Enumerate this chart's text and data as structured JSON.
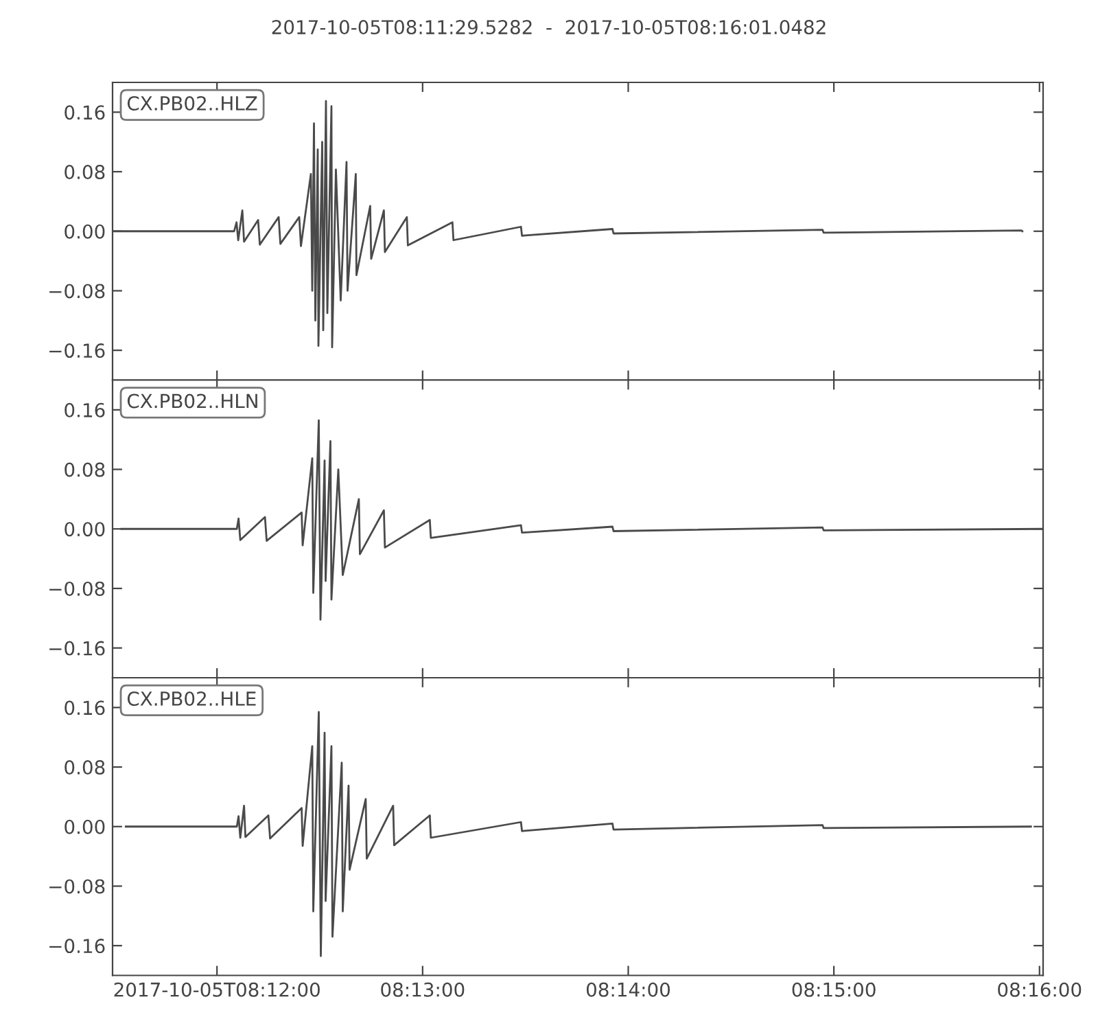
{
  "chart_data": [
    {
      "type": "line",
      "title": "2017-10-05T08:11:29.5282  -  2017-10-05T08:16:01.0482",
      "annotations": [
        "CX.PB02..HLZ"
      ],
      "xlim": [
        "2017-10-05T08:11:29.528",
        "2017-10-05T08:16:01.048"
      ],
      "xticks": [
        {
          "value": "2017-10-05T08:12:00",
          "label": null
        },
        {
          "value": "2017-10-05T08:13:00",
          "label": null
        },
        {
          "value": "2017-10-05T08:14:00",
          "label": null
        },
        {
          "value": "2017-10-05T08:15:00",
          "label": null
        },
        {
          "value": "2017-10-05T08:16:00",
          "label": null
        }
      ],
      "ylim": [
        -0.2,
        0.2
      ],
      "yticks": [
        {
          "value": -0.16,
          "label": "−0.16"
        },
        {
          "value": -0.08,
          "label": "−0.08"
        },
        {
          "value": 0,
          "label": "0.00"
        },
        {
          "value": 0.08,
          "label": "0.08"
        },
        {
          "value": 0.16,
          "label": "0.16"
        }
      ],
      "tick_labels": "y",
      "grid": false,
      "x": [
        "2017-10-05T08:11:29.6",
        "2017-10-05T08:12:05.0",
        "2017-10-05T08:12:05.7",
        "2017-10-05T08:12:06.2",
        "2017-10-05T08:12:07.4",
        "2017-10-05T08:12:07.9",
        "2017-10-05T08:12:12.0",
        "2017-10-05T08:12:12.5",
        "2017-10-05T08:12:18.0",
        "2017-10-05T08:12:18.5",
        "2017-10-05T08:12:24.0",
        "2017-10-05T08:12:24.5",
        "2017-10-05T08:12:27.4",
        "2017-10-05T08:12:27.8",
        "2017-10-05T08:12:28.3",
        "2017-10-05T08:12:28.7",
        "2017-10-05T08:12:29.4",
        "2017-10-05T08:12:29.6",
        "2017-10-05T08:12:30.7",
        "2017-10-05T08:12:31.0",
        "2017-10-05T08:12:31.8",
        "2017-10-05T08:12:32.2",
        "2017-10-05T08:12:33.4",
        "2017-10-05T08:12:33.6",
        "2017-10-05T08:12:34.7",
        "2017-10-05T08:12:36.1",
        "2017-10-05T08:12:37.8",
        "2017-10-05T08:12:38.1",
        "2017-10-05T08:12:40.5",
        "2017-10-05T08:12:40.7",
        "2017-10-05T08:12:44.7",
        "2017-10-05T08:12:45.0",
        "2017-10-05T08:12:48.7",
        "2017-10-05T08:12:49.0",
        "2017-10-05T08:12:55.4",
        "2017-10-05T08:12:55.7",
        "2017-10-05T08:13:08.7",
        "2017-10-05T08:13:09.0",
        "2017-10-05T08:13:28.7",
        "2017-10-05T08:13:29.0",
        "2017-10-05T08:13:55.4",
        "2017-10-05T08:13:55.7",
        "2017-10-05T08:14:56.7",
        "2017-10-05T08:14:57.0",
        "2017-10-05T08:15:54.7",
        "2017-10-05T08:15:55.0"
      ],
      "series": [
        {
          "color": "#4a4a4a",
          "line_style": "solid",
          "marker": "none",
          "values": [
            0,
            0,
            0.012,
            -0.012,
            0.028,
            -0.014,
            0.015,
            -0.018,
            0.019,
            -0.017,
            0.019,
            -0.02,
            0.077,
            -0.08,
            0.145,
            -0.12,
            0.11,
            -0.154,
            0.12,
            -0.133,
            0.175,
            -0.11,
            0.168,
            -0.156,
            0.083,
            -0.093,
            0.093,
            -0.08,
            0.077,
            -0.059,
            0.034,
            -0.037,
            0.028,
            -0.028,
            0.019,
            -0.019,
            0.012,
            -0.012,
            0.006,
            -0.006,
            0.003,
            -0.003,
            0.002,
            -0.002,
            0.001,
            0
          ]
        }
      ]
    },
    {
      "type": "line",
      "annotations": [
        "CX.PB02..HLN"
      ],
      "xlim": [
        "2017-10-05T08:11:29.528",
        "2017-10-05T08:16:01.048"
      ],
      "xticks": [
        {
          "value": "2017-10-05T08:12:00",
          "label": null
        },
        {
          "value": "2017-10-05T08:13:00",
          "label": null
        },
        {
          "value": "2017-10-05T08:14:00",
          "label": null
        },
        {
          "value": "2017-10-05T08:15:00",
          "label": null
        },
        {
          "value": "2017-10-05T08:16:00",
          "label": null
        }
      ],
      "ylim": [
        -0.2,
        0.2
      ],
      "yticks": [
        {
          "value": -0.16,
          "label": "−0.16"
        },
        {
          "value": -0.08,
          "label": "−0.08"
        },
        {
          "value": 0,
          "label": "0.00"
        },
        {
          "value": 0.08,
          "label": "0.08"
        },
        {
          "value": 0.16,
          "label": "0.16"
        }
      ],
      "tick_labels": "y",
      "grid": false,
      "x": [
        "2017-10-05T08:11:32.1",
        "2017-10-05T08:12:05.8",
        "2017-10-05T08:12:06.3",
        "2017-10-05T08:12:06.8",
        "2017-10-05T08:12:14.0",
        "2017-10-05T08:12:14.5",
        "2017-10-05T08:12:24.7",
        "2017-10-05T08:12:25.0",
        "2017-10-05T08:12:27.8",
        "2017-10-05T08:12:28.1",
        "2017-10-05T08:12:29.7",
        "2017-10-05T08:12:30.2",
        "2017-10-05T08:12:31.4",
        "2017-10-05T08:12:31.7",
        "2017-10-05T08:12:33.1",
        "2017-10-05T08:12:33.4",
        "2017-10-05T08:12:35.4",
        "2017-10-05T08:12:36.7",
        "2017-10-05T08:12:41.4",
        "2017-10-05T08:12:41.7",
        "2017-10-05T08:12:48.7",
        "2017-10-05T08:12:49.0",
        "2017-10-05T08:13:02.1",
        "2017-10-05T08:13:02.4",
        "2017-10-05T08:13:28.7",
        "2017-10-05T08:13:29.0",
        "2017-10-05T08:13:55.4",
        "2017-10-05T08:13:55.7",
        "2017-10-05T08:14:56.7",
        "2017-10-05T08:14:57.0",
        "2017-10-05T08:16:00.8"
      ],
      "series": [
        {
          "color": "#4a4a4a",
          "line_style": "solid",
          "marker": "none",
          "values": [
            0,
            0,
            0.014,
            -0.015,
            0.016,
            -0.016,
            0.022,
            -0.022,
            0.095,
            -0.086,
            0.146,
            -0.122,
            0.092,
            -0.07,
            0.118,
            -0.095,
            0.08,
            -0.062,
            0.04,
            -0.034,
            0.025,
            -0.025,
            0.012,
            -0.012,
            0.005,
            -0.005,
            0.003,
            -0.003,
            0.002,
            -0.002,
            0
          ]
        }
      ]
    },
    {
      "type": "line",
      "annotations": [
        "CX.PB02..HLE"
      ],
      "xlim": [
        "2017-10-05T08:11:29.528",
        "2017-10-05T08:16:01.048"
      ],
      "xticks": [
        {
          "value": "2017-10-05T08:12:00",
          "label": "2017-10-05T08:12:00"
        },
        {
          "value": "2017-10-05T08:13:00",
          "label": "08:13:00"
        },
        {
          "value": "2017-10-05T08:14:00",
          "label": "08:14:00"
        },
        {
          "value": "2017-10-05T08:15:00",
          "label": "08:15:00"
        },
        {
          "value": "2017-10-05T08:16:00",
          "label": "08:16:00"
        }
      ],
      "ylim": [
        -0.2,
        0.2
      ],
      "yticks": [
        {
          "value": -0.16,
          "label": "−0.16"
        },
        {
          "value": -0.08,
          "label": "−0.08"
        },
        {
          "value": 0,
          "label": "0.00"
        },
        {
          "value": 0.08,
          "label": "0.08"
        },
        {
          "value": 0.16,
          "label": "0.16"
        }
      ],
      "grid": false,
      "x": [
        "2017-10-05T08:11:33.4",
        "2017-10-05T08:12:05.8",
        "2017-10-05T08:12:06.3",
        "2017-10-05T08:12:06.8",
        "2017-10-05T08:12:07.9",
        "2017-10-05T08:12:08.3",
        "2017-10-05T08:12:15.0",
        "2017-10-05T08:12:15.5",
        "2017-10-05T08:12:24.7",
        "2017-10-05T08:12:25.0",
        "2017-10-05T08:12:27.8",
        "2017-10-05T08:12:28.1",
        "2017-10-05T08:12:29.7",
        "2017-10-05T08:12:30.3",
        "2017-10-05T08:12:31.4",
        "2017-10-05T08:12:31.7",
        "2017-10-05T08:12:33.4",
        "2017-10-05T08:12:33.7",
        "2017-10-05T08:12:36.4",
        "2017-10-05T08:12:36.7",
        "2017-10-05T08:12:38.4",
        "2017-10-05T08:12:38.7",
        "2017-10-05T08:12:43.4",
        "2017-10-05T08:12:43.7",
        "2017-10-05T08:12:51.4",
        "2017-10-05T08:12:51.7",
        "2017-10-05T08:13:02.1",
        "2017-10-05T08:13:02.4",
        "2017-10-05T08:13:28.7",
        "2017-10-05T08:13:29.0",
        "2017-10-05T08:13:55.4",
        "2017-10-05T08:13:55.7",
        "2017-10-05T08:14:56.7",
        "2017-10-05T08:14:57.0",
        "2017-10-05T08:15:57.5"
      ],
      "series": [
        {
          "color": "#4a4a4a",
          "line_style": "solid",
          "marker": "none",
          "values": [
            0,
            0,
            0.014,
            -0.015,
            0.028,
            -0.014,
            0.015,
            -0.016,
            0.025,
            -0.026,
            0.108,
            -0.114,
            0.154,
            -0.174,
            0.126,
            -0.1,
            0.108,
            -0.148,
            0.086,
            -0.114,
            0.055,
            -0.058,
            0.037,
            -0.043,
            0.028,
            -0.025,
            0.015,
            -0.015,
            0.006,
            -0.006,
            0.004,
            -0.004,
            0.002,
            -0.002,
            0
          ]
        }
      ]
    }
  ]
}
